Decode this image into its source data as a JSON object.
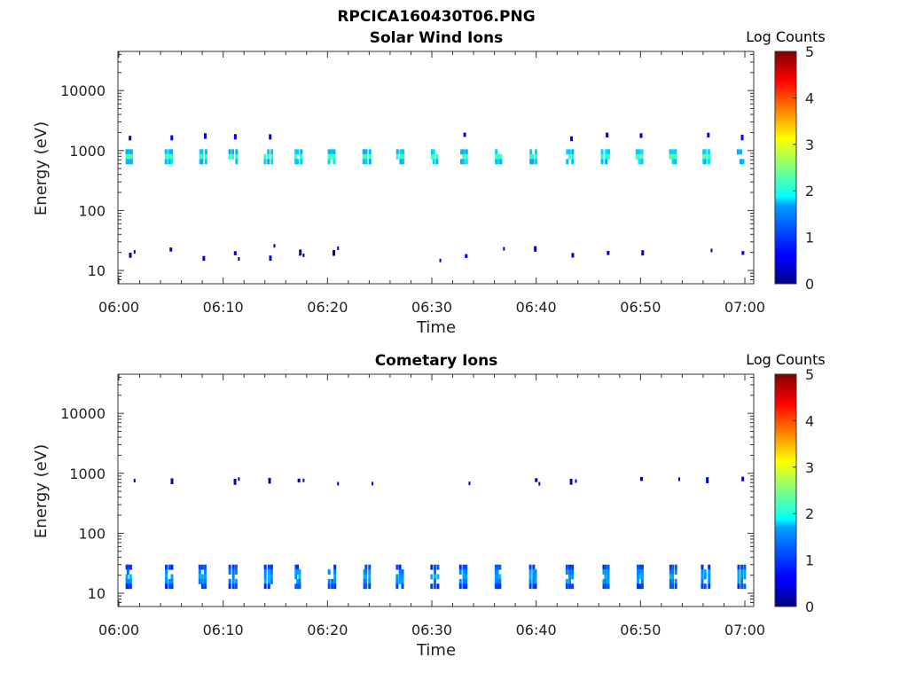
{
  "figure": {
    "title": "RPCICA160430T06.PNG"
  },
  "panels": [
    {
      "title": "Solar Wind Ions",
      "xlabel": "Time",
      "ylabel": "Energy (eV)",
      "colorbar_label": "Log Counts"
    },
    {
      "title": "Cometary Ions",
      "xlabel": "Time",
      "ylabel": "Energy (eV)",
      "colorbar_label": "Log Counts"
    }
  ],
  "chart_data": [
    {
      "type": "heatmap",
      "title": "Solar Wind Ions",
      "xlabel": "Time",
      "ylabel": "Energy (eV)",
      "x_tick_labels": [
        "06:00",
        "06:10",
        "06:20",
        "06:30",
        "06:40",
        "06:50",
        "07:00"
      ],
      "x_range_minutes": [
        0,
        60
      ],
      "y_scale": "log",
      "y_tick_values": [
        10,
        100,
        1000,
        10000
      ],
      "y_tick_labels": [
        "10",
        "100",
        "1000",
        "10000"
      ],
      "y_range": [
        6,
        45000
      ],
      "colorbar": {
        "label": "Log Counts",
        "range": [
          0,
          5
        ],
        "ticks": [
          "0",
          "1",
          "2",
          "3",
          "4",
          "5"
        ],
        "colormap": "jet"
      },
      "sweep_times_minutes": [
        1.0,
        4.9,
        8.1,
        11.0,
        14.4,
        17.2,
        20.5,
        23.8,
        27.0,
        30.3,
        33.1,
        36.4,
        39.8,
        43.3,
        46.7,
        50.0,
        53.2,
        56.3,
        59.7
      ],
      "features": [
        {
          "name": "solar wind main beam",
          "energy_range_eV": [
            600,
            1050
          ],
          "log_counts_peak": 2.0
        },
        {
          "name": "alpha particles",
          "energy_range_eV": [
            1500,
            2000
          ],
          "log_counts_peak": 0.6
        },
        {
          "name": "low energy dots",
          "energy_range_eV": [
            15,
            28
          ],
          "log_counts_peak": 0.4
        }
      ]
    },
    {
      "type": "heatmap",
      "title": "Cometary Ions",
      "xlabel": "Time",
      "ylabel": "Energy (eV)",
      "x_tick_labels": [
        "06:00",
        "06:10",
        "06:20",
        "06:30",
        "06:40",
        "06:50",
        "07:00"
      ],
      "x_range_minutes": [
        0,
        60
      ],
      "y_scale": "log",
      "y_tick_values": [
        10,
        100,
        1000,
        10000
      ],
      "y_tick_labels": [
        "10",
        "100",
        "1000",
        "10000"
      ],
      "y_range": [
        6,
        45000
      ],
      "colorbar": {
        "label": "Log Counts",
        "range": [
          0,
          5
        ],
        "ticks": [
          "0",
          "1",
          "2",
          "3",
          "4",
          "5"
        ],
        "colormap": "jet"
      },
      "sweep_times_minutes": [
        1.0,
        4.9,
        8.1,
        11.0,
        14.4,
        17.2,
        20.5,
        23.8,
        27.0,
        30.3,
        33.1,
        36.4,
        39.8,
        43.3,
        46.7,
        50.0,
        53.2,
        56.3,
        59.7
      ],
      "features": [
        {
          "name": "cometary ion band",
          "energy_range_eV": [
            12,
            30
          ],
          "log_counts_peak": 1.3
        },
        {
          "name": "high energy dots",
          "energy_range_eV": [
            700,
            900
          ],
          "log_counts_peak": 0.3
        }
      ]
    }
  ]
}
